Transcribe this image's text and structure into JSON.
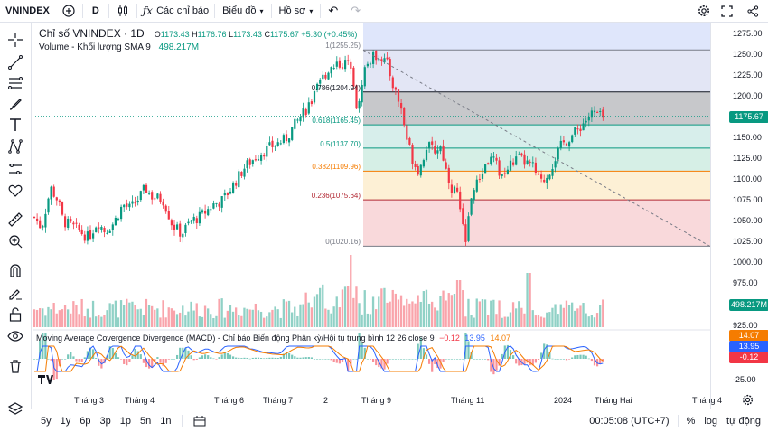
{
  "topbar": {
    "symbol": "VNINDEX",
    "interval": "D",
    "indicators": "Các chỉ báo",
    "chart_type": "Biểu đồ",
    "profile": "Hồ sơ"
  },
  "legend": {
    "name": "Chỉ số VNINDEX · 1D",
    "open_label": "O",
    "open": "1173.43",
    "high_label": "H",
    "high": "1176.76",
    "low_label": "L",
    "low": "1173.43",
    "close_label": "C",
    "close": "1175.67",
    "change": "+5.30 (+0.45%)",
    "volume_label": "Volume - Khối lượng SMA 9",
    "volume_value": "498.217M"
  },
  "macd_legend": {
    "label": "Moving Average Covergence Divergence (MACD) - Chỉ báo Biến động Phân kỳ/Hội tụ trung bình 12 26 close 9",
    "v1": "−0.12",
    "v2": "13.95",
    "v3": "14.07"
  },
  "fib_levels": [
    {
      "label": "1(1255.25)",
      "price": 1255.25,
      "color": "#787b86"
    },
    {
      "label": "0.786(1204.94)",
      "price": 1204.94,
      "color": "#131722"
    },
    {
      "label": "0.618(1165.45)",
      "price": 1165.45,
      "color": "#089981"
    },
    {
      "label": "0.5(1137.70)",
      "price": 1137.7,
      "color": "#089981"
    },
    {
      "label": "0.382(1109.96)",
      "price": 1109.96,
      "color": "#f57c00"
    },
    {
      "label": "0.236(1075.64)",
      "price": 1075.64,
      "color": "#b22833"
    },
    {
      "label": "0(1020.16)",
      "price": 1020.16,
      "color": "#787b86"
    }
  ],
  "price_axis": [
    "1275.00",
    "1250.00",
    "1225.00",
    "1200.00",
    "1175.00",
    "1150.00",
    "1125.00",
    "1100.00",
    "1075.00",
    "1050.00",
    "1025.00",
    "1000.00",
    "975.00",
    "925.00"
  ],
  "price_tag": "1175.67",
  "volume_tag": "498.217M",
  "macd_axis": [
    "-25.00"
  ],
  "macd_tags": [
    "14.07",
    "13.95",
    "-0.12"
  ],
  "months": [
    "Tháng 3",
    "Tháng 4",
    "Tháng 6",
    "Tháng 7",
    "2",
    "Tháng 9",
    "Tháng 11",
    "2024",
    "Tháng Hai",
    "Tháng 4"
  ],
  "bottombar": {
    "ranges": [
      "5y",
      "1y",
      "6p",
      "3p",
      "1p",
      "5n",
      "1n"
    ],
    "time": "00:05:08 (UTC+7)",
    "pct": "%",
    "log": "log",
    "auto": "tự động"
  },
  "colors": {
    "up": "#089981",
    "down": "#f23645",
    "accent": "#2962ff"
  }
}
